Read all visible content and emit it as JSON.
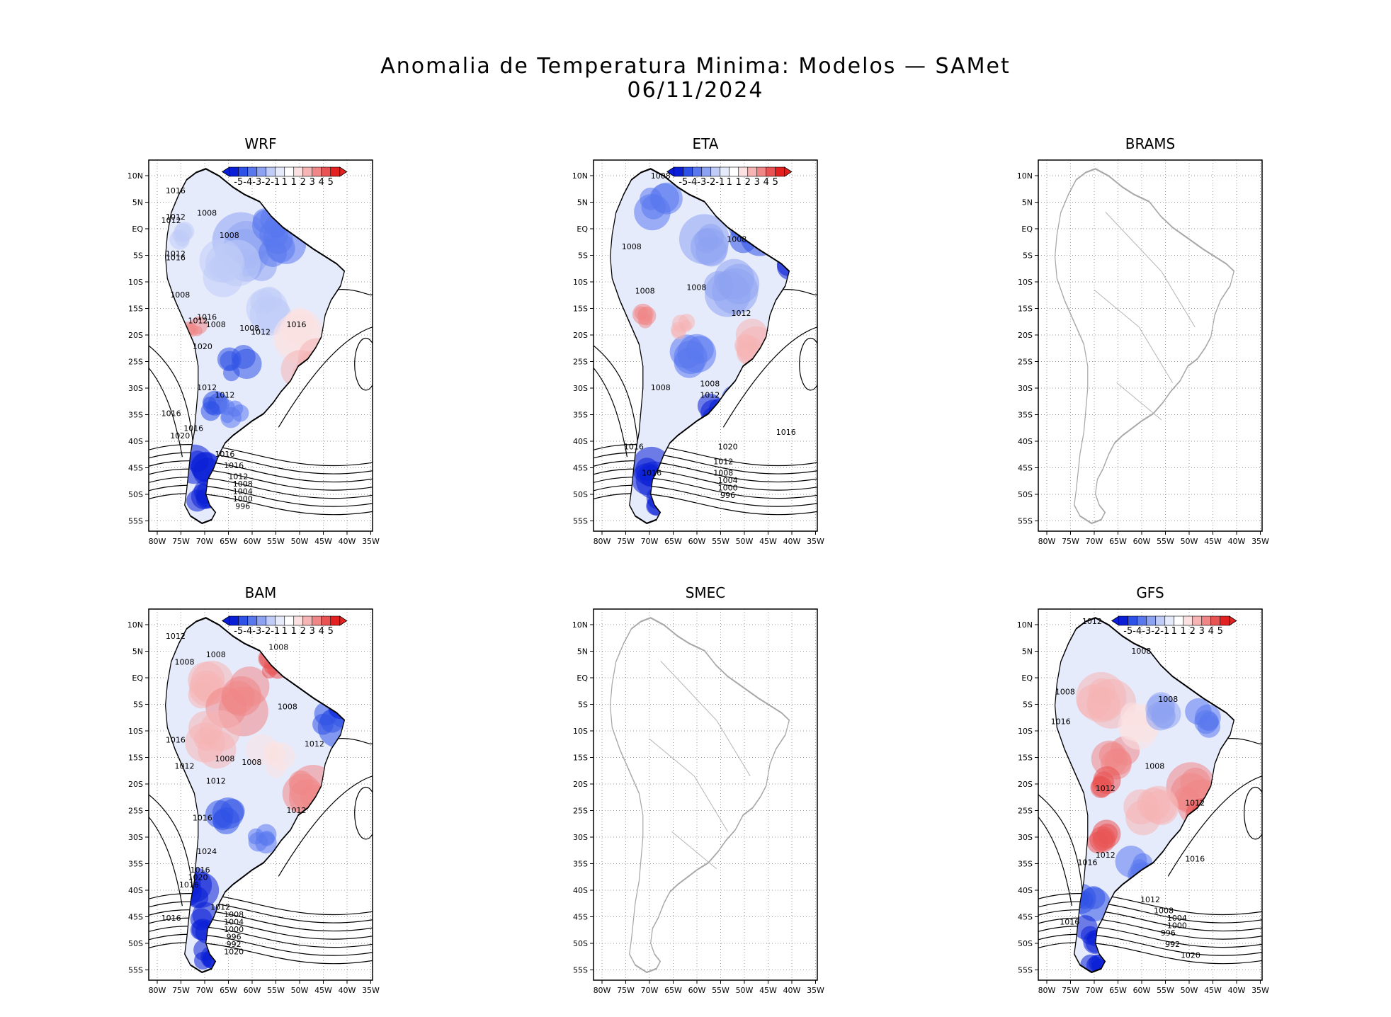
{
  "figure": {
    "title_line1": "Anomalia de Temperatura Minima: Modelos — SAMet",
    "title_line2": "06/11/2024"
  },
  "axes": {
    "lat_labels": [
      "10N",
      "5N",
      "EQ",
      "5S",
      "10S",
      "15S",
      "20S",
      "25S",
      "30S",
      "35S",
      "40S",
      "45S",
      "50S",
      "55S"
    ],
    "lon_labels": [
      "80W",
      "75W",
      "70W",
      "65W",
      "60W",
      "55W",
      "50W",
      "45W",
      "40W",
      "35W"
    ]
  },
  "colorbar": {
    "labels": [
      "-5",
      "-4",
      "-3",
      "-2",
      "-1",
      "1",
      "1",
      "2",
      "3",
      "4",
      "5"
    ],
    "colors": [
      "#0a1fd6",
      "#2f52e6",
      "#5a78ee",
      "#8ea2f2",
      "#c0ccf8",
      "#e6ebfc",
      "#ffffff",
      "#fbe1e1",
      "#f6b4b4",
      "#f08686",
      "#e95353",
      "#e32121"
    ]
  },
  "panels": [
    {
      "name": "WRF",
      "has_data": true,
      "isobars": [
        "1016",
        "1012",
        "1012",
        "1008",
        "1008",
        "1012",
        "1016",
        "1008",
        "1016",
        "1012",
        "1008",
        "1008",
        "1012",
        "1016",
        "1020",
        "1012",
        "1012",
        "1016",
        "1016",
        "1020",
        "1016",
        "1016",
        "1012",
        "1008",
        "1004",
        "1000",
        "996"
      ]
    },
    {
      "name": "ETA",
      "has_data": true,
      "isobars": [
        "1008",
        "1008",
        "1008",
        "1008",
        "1008",
        "1012",
        "1008",
        "1008",
        "1012",
        "1016",
        "1016",
        "1020",
        "1016",
        "1012",
        "1008",
        "1004",
        "1000",
        "996"
      ]
    },
    {
      "name": "BRAMS",
      "has_data": false,
      "isobars": []
    },
    {
      "name": "BAM",
      "has_data": true,
      "isobars": [
        "1012",
        "1008",
        "1008",
        "1008",
        "1008",
        "1016",
        "1012",
        "1012",
        "1008",
        "1008",
        "1012",
        "1016",
        "1012",
        "1024",
        "1016",
        "1020",
        "1016",
        "1012",
        "1008",
        "1004",
        "1000",
        "996",
        "992",
        "1020",
        "1016"
      ]
    },
    {
      "name": "SMEC",
      "has_data": false,
      "isobars": []
    },
    {
      "name": "GFS",
      "has_data": true,
      "isobars": [
        "1012",
        "1008",
        "1008",
        "1008",
        "1016",
        "1008",
        "1012",
        "1012",
        "1012",
        "1016",
        "1016",
        "1012",
        "1008",
        "1004",
        "1000",
        "996",
        "992",
        "1020",
        "1016"
      ]
    }
  ]
}
